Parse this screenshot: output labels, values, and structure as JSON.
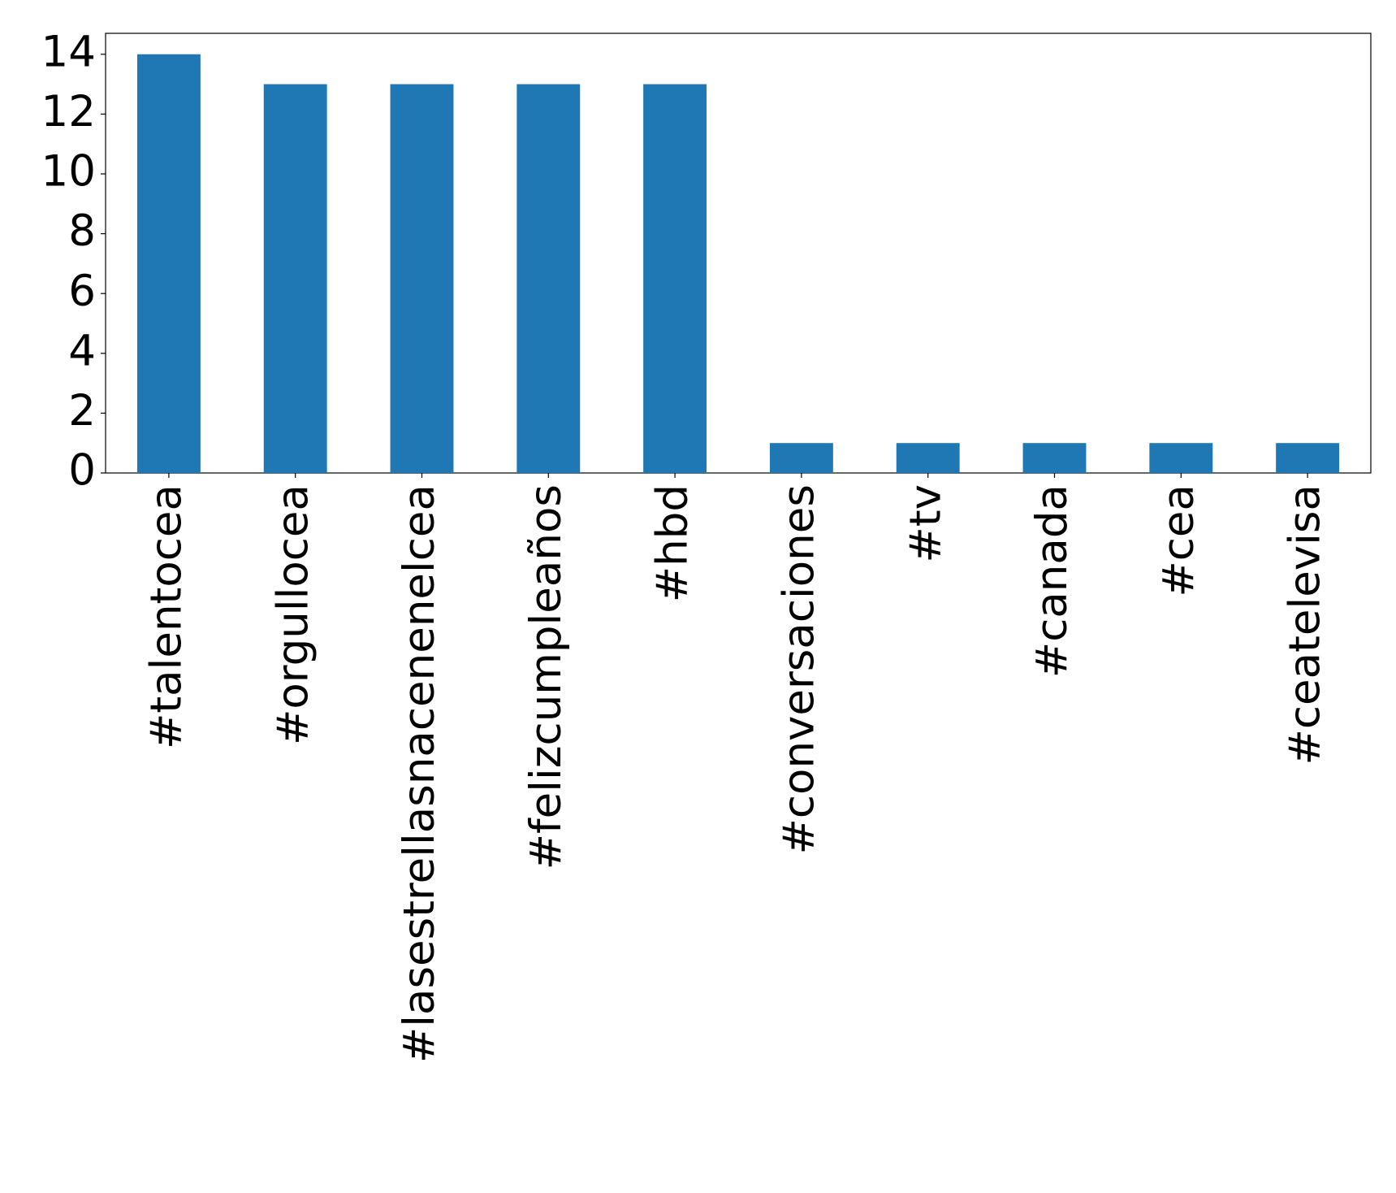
{
  "chart_data": {
    "type": "bar",
    "categories": [
      "#talentocea",
      "#orgullocea",
      "#lasestrellasnacenenelcea",
      "#felizcumpleaños",
      "#hbd",
      "#conversaciones",
      "#tv",
      "#canada",
      "#cea",
      "#ceatelevisa"
    ],
    "values": [
      14,
      13,
      13,
      13,
      13,
      1,
      1,
      1,
      1,
      1
    ],
    "color": "#1f77b4",
    "ylim": [
      0,
      14.7
    ],
    "yticks": [
      0,
      2,
      4,
      6,
      8,
      10,
      12,
      14
    ],
    "grid": false
  }
}
